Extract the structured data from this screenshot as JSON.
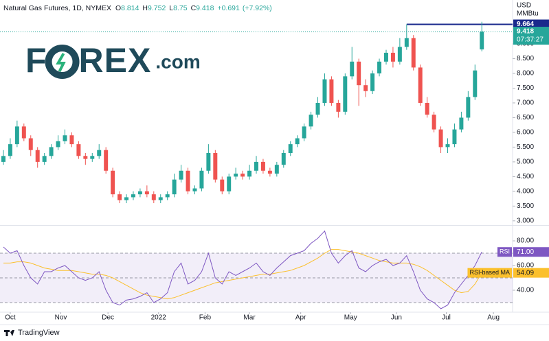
{
  "chart_data": {
    "type": "candlestick",
    "title": "Natural Gas Futures, 1D, NYMEX",
    "ohlc_letters": [
      "O",
      "H",
      "L",
      "C"
    ],
    "change": {
      "value": 0.691,
      "label": "+0.691"
    },
    "change_pct": {
      "value": 7.92,
      "label": "(+7.92%)"
    },
    "currency": "USD",
    "unit": "MMBtu",
    "countdown": "07:37:27",
    "logo": {
      "left": "F",
      "right": "REX",
      "suffix": ".com"
    },
    "footer": "TradingView",
    "up_color": "#26a69a",
    "down_color": "#ef5350",
    "level": 9.664,
    "level_color": "#1a2a8c",
    "xlim": [
      -0.5,
      74.5
    ],
    "xticks": [
      {
        "value": 1,
        "label": "Oct"
      },
      {
        "value": 8.4,
        "label": "Nov"
      },
      {
        "value": 15.3,
        "label": "Dec"
      },
      {
        "value": 22.7,
        "label": "2022"
      },
      {
        "value": 29.5,
        "label": "Feb"
      },
      {
        "value": 36,
        "label": "Mar"
      },
      {
        "value": 43.5,
        "label": "Apr"
      },
      {
        "value": 50.8,
        "label": "May"
      },
      {
        "value": 57.5,
        "label": "Jun"
      },
      {
        "value": 64.8,
        "label": "Jul"
      },
      {
        "value": 71.7,
        "label": "Aug"
      }
    ],
    "ylim": [
      2.88,
      10.49
    ],
    "yticks": [
      {
        "value": 3,
        "label": "3.000"
      },
      {
        "value": 3.5,
        "label": "3.500"
      },
      {
        "value": 4,
        "label": "4.000"
      },
      {
        "value": 4.5,
        "label": "4.500"
      },
      {
        "value": 5,
        "label": "5.000"
      },
      {
        "value": 5.5,
        "label": "5.500"
      },
      {
        "value": 6,
        "label": "6.000"
      },
      {
        "value": 6.5,
        "label": "6.500"
      },
      {
        "value": 7,
        "label": "7.000"
      },
      {
        "value": 7.5,
        "label": "7.500"
      },
      {
        "value": 8,
        "label": "8.000"
      },
      {
        "value": 8.5,
        "label": "8.500"
      },
      {
        "value": 9,
        "label": "9.000"
      }
    ],
    "open": [
      5.0,
      5.2,
      5.6,
      6.2,
      5.8,
      5.4,
      5.0,
      5.2,
      5.5,
      5.7,
      5.9,
      5.6,
      5.2,
      5.1,
      5.2,
      5.4,
      4.7,
      3.9,
      3.7,
      3.8,
      3.9,
      4.0,
      3.9,
      3.7,
      3.8,
      3.9,
      4.4,
      4.7,
      4.0,
      4.1,
      4.7,
      5.3,
      4.4,
      4.0,
      4.5,
      4.6,
      4.5,
      4.7,
      5.0,
      4.7,
      4.6,
      4.9,
      5.3,
      5.6,
      5.8,
      6.2,
      6.6,
      7.0,
      7.8,
      7.0,
      6.7,
      7.9,
      8.4,
      7.6,
      7.4,
      8.0,
      8.4,
      8.7,
      8.4,
      8.9,
      9.2,
      8.2,
      7.0,
      6.6,
      6.1,
      5.5,
      5.6,
      6.1,
      6.5,
      7.2,
      8.814
    ],
    "high": [
      5.4,
      5.8,
      6.4,
      6.3,
      5.9,
      5.5,
      5.3,
      5.6,
      5.9,
      6.1,
      6.0,
      5.7,
      5.3,
      5.3,
      5.6,
      5.5,
      4.8,
      4.0,
      3.9,
      4.0,
      4.1,
      4.2,
      4.0,
      3.9,
      4.0,
      4.6,
      4.9,
      4.8,
      4.2,
      4.8,
      5.6,
      5.4,
      4.5,
      4.6,
      4.8,
      4.7,
      4.9,
      5.2,
      5.1,
      4.8,
      5.0,
      5.4,
      5.7,
      5.9,
      6.3,
      6.7,
      7.2,
      8.0,
      7.9,
      7.1,
      8.0,
      8.9,
      8.5,
      7.8,
      8.1,
      8.5,
      8.8,
      8.9,
      9.2,
      9.664,
      9.3,
      8.3,
      7.2,
      6.7,
      6.2,
      5.8,
      6.3,
      6.7,
      7.4,
      8.3,
      9.752
    ],
    "low": [
      4.9,
      5.1,
      5.5,
      5.7,
      5.2,
      4.8,
      4.9,
      5.1,
      5.4,
      5.6,
      5.5,
      5.1,
      4.9,
      5.0,
      5.1,
      4.6,
      3.8,
      3.6,
      3.6,
      3.7,
      3.8,
      3.8,
      3.6,
      3.6,
      3.7,
      3.8,
      4.3,
      3.9,
      3.9,
      4.0,
      4.6,
      4.3,
      3.9,
      3.9,
      4.4,
      4.4,
      4.4,
      4.6,
      4.6,
      4.5,
      4.5,
      4.8,
      5.2,
      5.5,
      5.7,
      6.1,
      6.5,
      6.9,
      6.9,
      6.5,
      6.6,
      7.8,
      6.9,
      7.2,
      7.3,
      7.9,
      8.3,
      8.2,
      8.3,
      8.8,
      8.1,
      6.9,
      6.5,
      6.0,
      5.3,
      5.3,
      5.5,
      6.0,
      6.4,
      7.1,
      8.75
    ],
    "close": [
      5.2,
      5.6,
      6.2,
      5.8,
      5.4,
      5.0,
      5.2,
      5.5,
      5.7,
      5.9,
      5.6,
      5.2,
      5.1,
      5.2,
      5.4,
      4.7,
      3.9,
      3.7,
      3.8,
      3.9,
      4.0,
      3.9,
      3.7,
      3.8,
      3.9,
      4.4,
      4.7,
      4.0,
      4.1,
      4.7,
      5.3,
      4.4,
      4.0,
      4.5,
      4.6,
      4.5,
      4.7,
      5.0,
      4.7,
      4.6,
      4.9,
      5.3,
      5.6,
      5.8,
      6.2,
      6.6,
      7.0,
      7.8,
      7.0,
      6.7,
      7.9,
      8.4,
      7.6,
      7.4,
      8.0,
      8.4,
      8.7,
      8.4,
      8.9,
      9.2,
      8.2,
      7.0,
      6.6,
      6.1,
      5.5,
      5.6,
      6.1,
      6.5,
      7.2,
      8.1,
      9.418
    ],
    "rsi_ylim": [
      22.2,
      91.7
    ],
    "rsi_yticks": [
      {
        "value": 40,
        "label": "40.00"
      },
      {
        "value": 60,
        "label": "60.00"
      },
      {
        "value": 80,
        "label": "80.00"
      }
    ],
    "rsi_levels": [
      30,
      50,
      70
    ],
    "rsi_series": [
      {
        "name": "RSI",
        "color": "#7e57c2",
        "last_label": "71.00",
        "values": [
          75,
          70,
          72,
          60,
          50,
          45,
          55,
          55,
          58,
          60,
          55,
          50,
          48,
          50,
          55,
          40,
          30,
          28,
          32,
          33,
          35,
          38,
          30,
          33,
          38,
          55,
          62,
          45,
          48,
          55,
          70,
          50,
          45,
          55,
          52,
          55,
          58,
          62,
          55,
          52,
          58,
          63,
          68,
          70,
          72,
          78,
          82,
          88,
          70,
          62,
          68,
          72,
          58,
          55,
          60,
          63,
          65,
          60,
          62,
          68,
          55,
          40,
          33,
          30,
          25,
          28,
          38,
          45,
          52,
          60,
          71
        ]
      },
      {
        "name": "RSI-based MA",
        "color": "#fbc02d",
        "last_label": "54.09",
        "values": [
          62,
          62,
          63,
          63,
          62,
          60,
          58,
          57,
          56,
          56,
          56,
          55,
          54,
          53,
          53,
          52,
          50,
          47,
          44,
          41,
          38,
          36,
          35,
          34,
          33,
          34,
          36,
          38,
          40,
          42,
          44,
          46,
          47,
          48,
          49,
          50,
          51,
          52,
          53,
          53,
          54,
          55,
          56,
          58,
          60,
          63,
          66,
          70,
          73,
          73,
          72,
          71,
          70,
          68,
          66,
          64,
          63,
          62,
          62,
          62,
          61,
          59,
          56,
          52,
          48,
          44,
          40,
          38,
          39,
          45,
          54.09
        ]
      }
    ]
  }
}
